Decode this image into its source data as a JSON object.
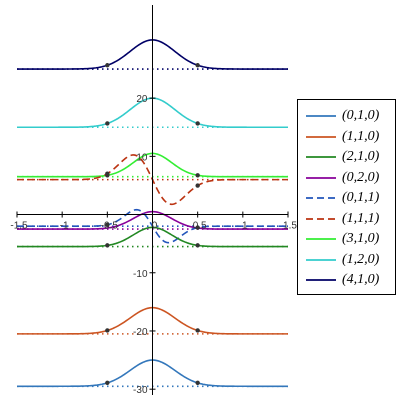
{
  "chart_data": {
    "type": "line",
    "title": "",
    "xlabel": "",
    "ylabel": "",
    "xlim": [
      -1.5,
      1.5
    ],
    "ylim": [
      -31,
      36
    ],
    "x_ticks": [
      -1.5,
      -1,
      -0.5,
      0,
      0.5,
      1,
      1.5
    ],
    "x_tick_labels": [
      "-1.5",
      "-1",
      "-0.5",
      "0",
      "0.5",
      "1",
      "1.5"
    ],
    "y_ticks": [
      20,
      10,
      -10,
      -20,
      -30
    ],
    "y_tick_labels": [
      "20",
      "10",
      "-10",
      "-20",
      "-30"
    ],
    "legend_position": "right",
    "grid": false,
    "series": [
      {
        "name": "(4,1,0)",
        "color": "#000066",
        "dash": "solid",
        "kind": "bump",
        "baseline": 25,
        "amplitude": 5,
        "width": 0.35,
        "marker_x": [
          -0.5,
          0.5
        ]
      },
      {
        "name": "(1,2,0)",
        "color": "#33CCCC",
        "dash": "solid",
        "kind": "bump",
        "baseline": 15,
        "amplitude": 5,
        "width": 0.35,
        "marker_x": [
          -0.5,
          0.5
        ]
      },
      {
        "name": "(3,1,0)",
        "color": "#33EE33",
        "dash": "solid",
        "kind": "bump",
        "baseline": 6.5,
        "amplitude": 4,
        "width": 0.3,
        "marker_x": [
          -0.5,
          0.5
        ]
      },
      {
        "name": "(1,1,1)",
        "color": "#BB3311",
        "dash": "dashed",
        "kind": "odd",
        "baseline": 6,
        "amplitude": 6,
        "width": 0.3,
        "marker_x": [
          -0.5,
          0.5
        ]
      },
      {
        "name": "(0,2,0)",
        "color": "#880099",
        "dash": "solid",
        "kind": "bump",
        "baseline": -2.5,
        "amplitude": 3,
        "width": 0.3,
        "marker_x": []
      },
      {
        "name": "(0,1,1)",
        "color": "#2255BB",
        "dash": "dashed",
        "kind": "odd",
        "baseline": -2,
        "amplitude": 4,
        "width": 0.25,
        "marker_x": [
          -0.5,
          0.5
        ]
      },
      {
        "name": "(2,1,0)",
        "color": "#228822",
        "dash": "solid",
        "kind": "bump",
        "baseline": -5.5,
        "amplitude": 3.3,
        "width": 0.3,
        "marker_x": [
          -0.5,
          0.5
        ]
      },
      {
        "name": "(1,1,0)",
        "color": "#CC5522",
        "dash": "solid",
        "kind": "bump",
        "baseline": -20.5,
        "amplitude": 4.5,
        "width": 0.35,
        "marker_x": [
          -0.5,
          0.5
        ]
      },
      {
        "name": "(0,1,0)",
        "color": "#3377BB",
        "dash": "solid",
        "kind": "bump",
        "baseline": -29.5,
        "amplitude": 4.5,
        "width": 0.35,
        "marker_x": [
          -0.5,
          0.5
        ]
      }
    ],
    "legend_entries": [
      {
        "label": "(0,1,0)",
        "color": "#3377BB",
        "dash": "solid"
      },
      {
        "label": "(1,1,0)",
        "color": "#CC5522",
        "dash": "solid"
      },
      {
        "label": "(2,1,0)",
        "color": "#228822",
        "dash": "solid"
      },
      {
        "label": "(0,2,0)",
        "color": "#880099",
        "dash": "solid"
      },
      {
        "label": "(0,1,1)",
        "color": "#2255BB",
        "dash": "dashed"
      },
      {
        "label": "(1,1,1)",
        "color": "#BB3311",
        "dash": "dashed"
      },
      {
        "label": "(3,1,0)",
        "color": "#33EE33",
        "dash": "solid"
      },
      {
        "label": "(1,2,0)",
        "color": "#33CCCC",
        "dash": "solid"
      },
      {
        "label": "(4,1,0)",
        "color": "#000066",
        "dash": "solid"
      }
    ]
  }
}
